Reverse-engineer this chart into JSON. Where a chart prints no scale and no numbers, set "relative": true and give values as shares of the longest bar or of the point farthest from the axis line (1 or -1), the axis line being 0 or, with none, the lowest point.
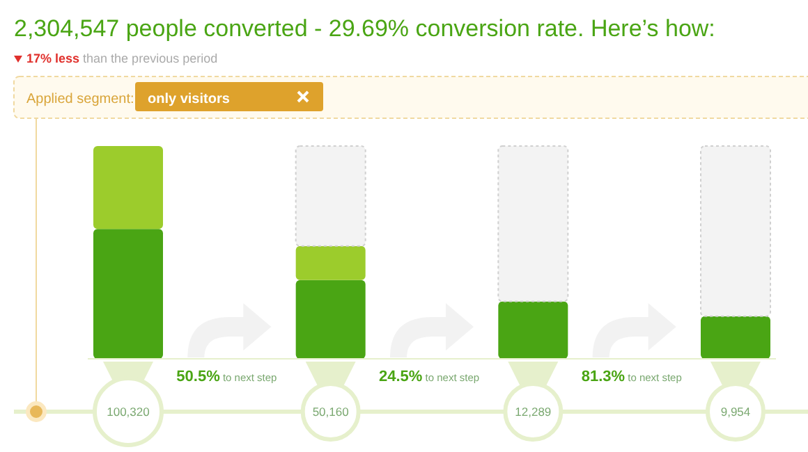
{
  "chart_data": {
    "type": "bar",
    "stacked": true,
    "relative": true,
    "title": "2,304,547 people converted - 29.69% conversion rate. Here’s how:",
    "subtitle": "17% less than the previous period",
    "categories": [
      "100,320",
      "50,160",
      "12,289",
      "9,954"
    ],
    "series": [
      {
        "color": "#4aa514",
        "values": [
          0.61,
          0.37,
          0.27,
          0.2
        ]
      },
      {
        "color": "#9ccc2c",
        "values": [
          0.39,
          0.16,
          0,
          0
        ]
      },
      {
        "color": "#f3f3f3",
        "values": [
          0,
          0.47,
          0.73,
          0.8
        ]
      }
    ],
    "annotations": [
      "Applied segment:",
      "only visitors",
      "50.5% to next step",
      "24.5% to next step",
      "81.3% to next step"
    ]
  }
}
